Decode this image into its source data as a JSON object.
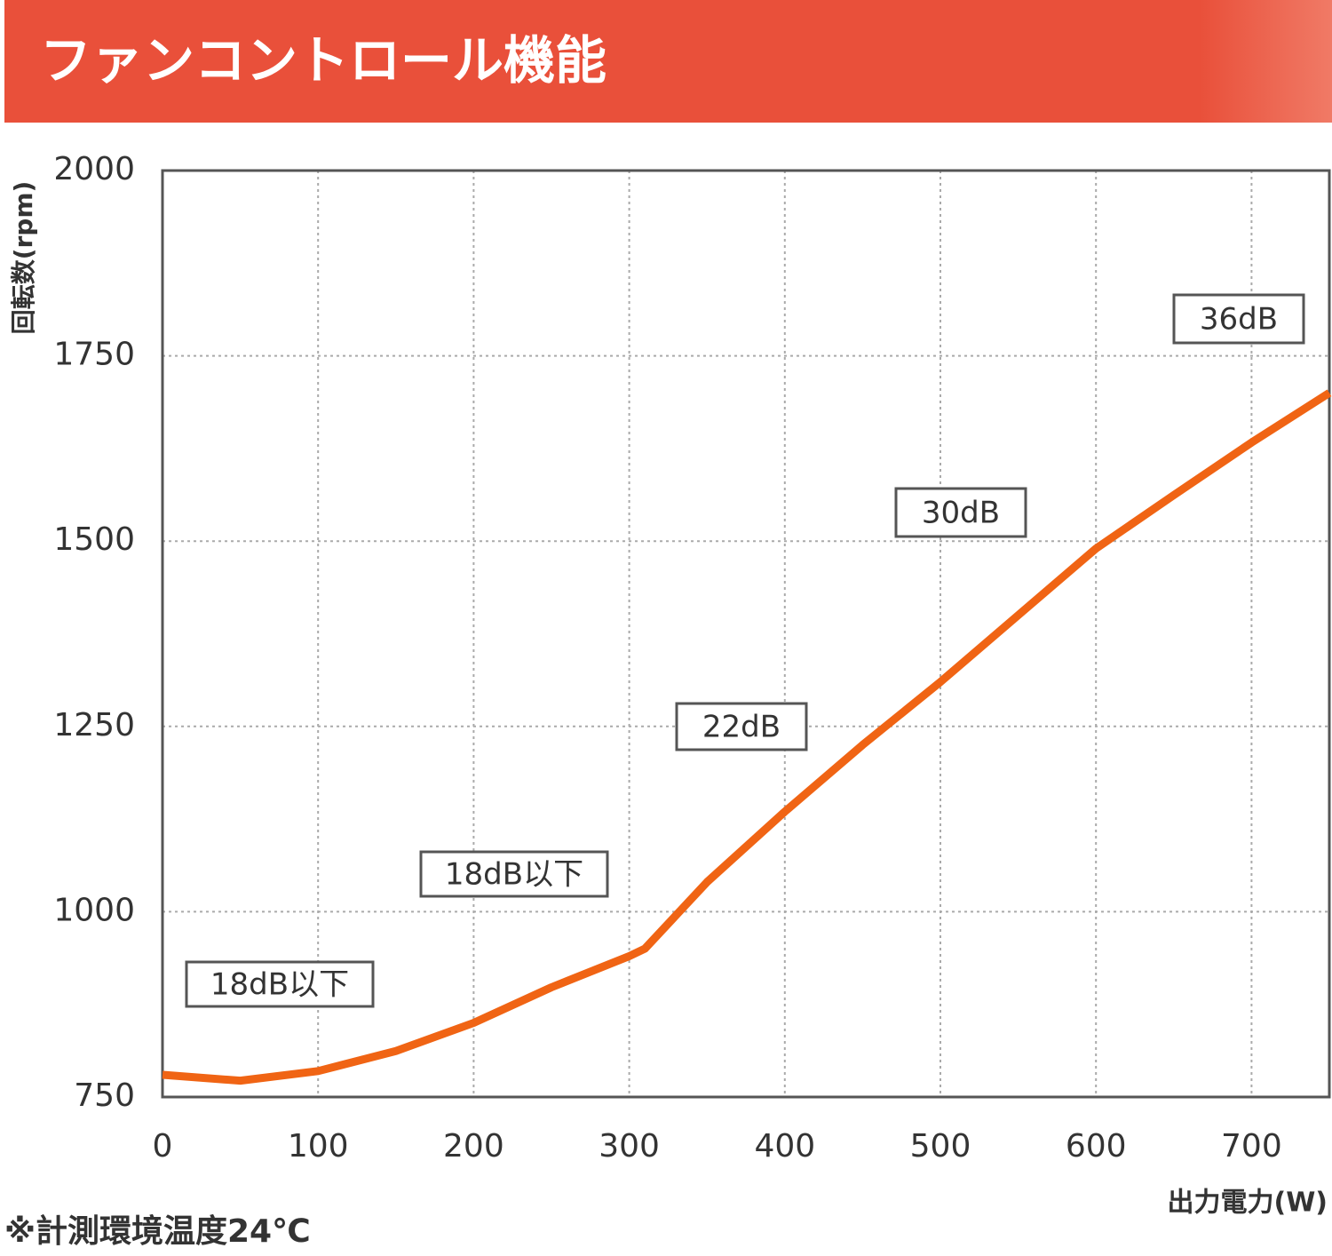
{
  "chart_data": {
    "type": "line",
    "title": "ファンコントロール機能",
    "y_label": "回転数(rpm)",
    "x_label": "出力電力(W)",
    "footnote": "※計測環境温度24℃",
    "x": [
      0,
      50,
      100,
      150,
      200,
      250,
      300,
      310,
      350,
      400,
      450,
      500,
      550,
      600,
      650,
      700,
      750
    ],
    "series": [
      {
        "color": "#f06414",
        "values": [
          780,
          772,
          785,
          812,
          850,
          898,
          940,
          950,
          1040,
          1135,
          1225,
          1310,
          1400,
          1490,
          1562,
          1633,
          1700
        ]
      }
    ],
    "xlim": [
      0,
      750
    ],
    "xticks": [
      0,
      100,
      200,
      300,
      400,
      500,
      600,
      700
    ],
    "ylim": [
      750,
      2000
    ],
    "yticks": [
      750,
      1000,
      1250,
      1500,
      1750,
      2000
    ],
    "grid": true,
    "annotations": [
      "18dB以下",
      "18dB以下",
      "22dB",
      "30dB",
      "36dB"
    ]
  }
}
